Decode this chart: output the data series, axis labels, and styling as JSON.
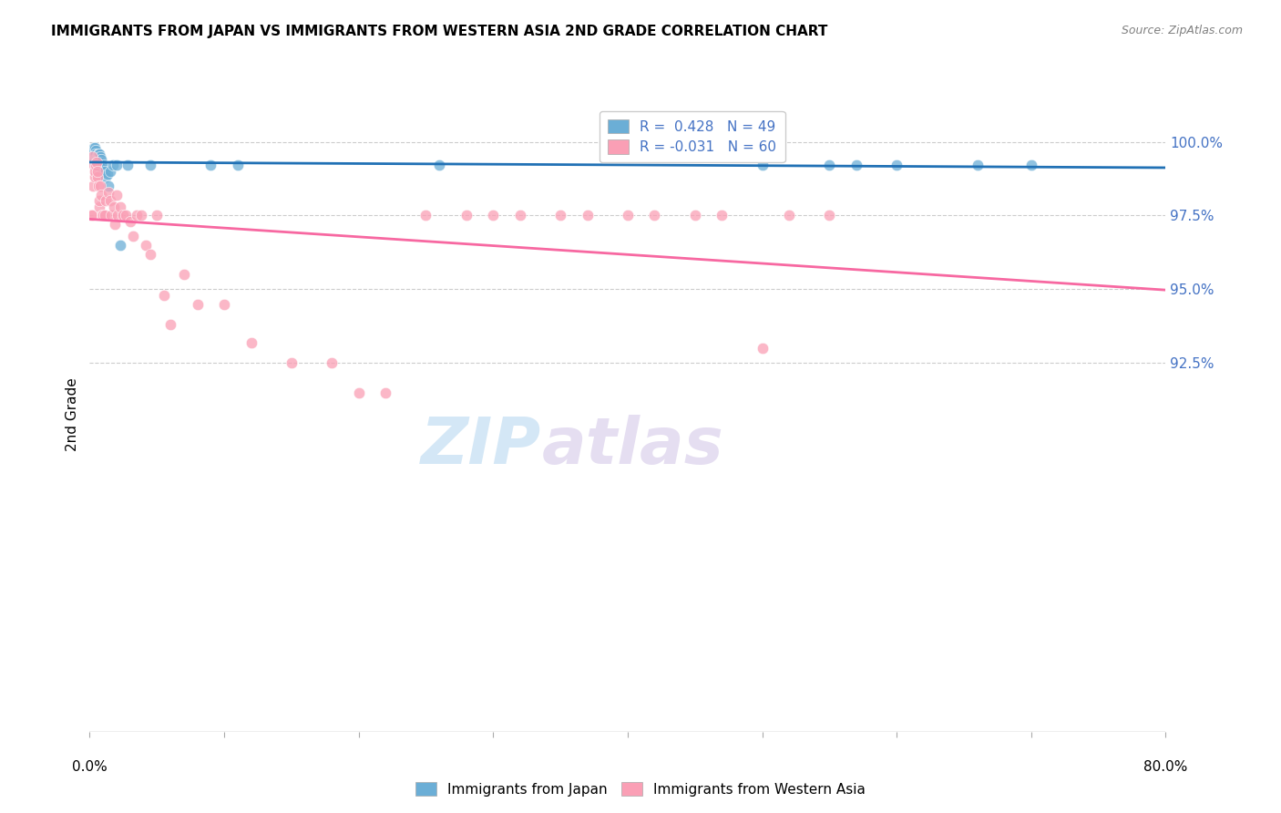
{
  "title": "IMMIGRANTS FROM JAPAN VS IMMIGRANTS FROM WESTERN ASIA 2ND GRADE CORRELATION CHART",
  "source": "Source: ZipAtlas.com",
  "ylabel": "2nd Grade",
  "x_min": 0.0,
  "x_max": 80.0,
  "y_min": 80.0,
  "y_max": 101.5,
  "y_ticks": [
    92.5,
    95.0,
    97.5,
    100.0
  ],
  "y_tick_labels": [
    "92.5%",
    "95.0%",
    "97.5%",
    "100.0%"
  ],
  "R_japan": 0.428,
  "N_japan": 49,
  "R_western_asia": -0.031,
  "N_western_asia": 60,
  "blue_color": "#6baed6",
  "pink_color": "#fa9fb5",
  "blue_line_color": "#2171b5",
  "pink_line_color": "#f768a1",
  "legend_label_japan": "Immigrants from Japan",
  "legend_label_western_asia": "Immigrants from Western Asia",
  "watermark_zip": "ZIP",
  "watermark_atlas": "atlas",
  "japan_x": [
    0.15,
    0.2,
    0.25,
    0.28,
    0.3,
    0.32,
    0.35,
    0.37,
    0.4,
    0.42,
    0.45,
    0.47,
    0.5,
    0.52,
    0.55,
    0.57,
    0.6,
    0.62,
    0.65,
    0.67,
    0.7,
    0.72,
    0.75,
    0.77,
    0.8,
    0.82,
    0.85,
    0.9,
    0.95,
    1.0,
    1.1,
    1.2,
    1.3,
    1.5,
    1.7,
    2.0,
    2.3,
    2.8,
    4.5,
    9.0,
    11.0,
    26.0,
    50.0,
    55.0,
    57.0,
    60.0,
    66.0,
    70.0,
    1.4
  ],
  "japan_y": [
    99.6,
    99.7,
    99.5,
    99.8,
    99.6,
    99.7,
    99.5,
    99.8,
    99.6,
    99.7,
    99.5,
    99.6,
    99.4,
    99.5,
    99.3,
    99.5,
    99.5,
    99.6,
    99.5,
    99.6,
    99.5,
    99.6,
    99.4,
    99.5,
    99.3,
    99.4,
    99.2,
    99.1,
    99.1,
    99.2,
    99.0,
    98.8,
    98.9,
    99.0,
    99.2,
    99.2,
    96.5,
    99.2,
    99.2,
    99.2,
    99.2,
    99.2,
    99.2,
    99.2,
    99.2,
    99.2,
    99.2,
    99.2,
    98.5
  ],
  "western_asia_x": [
    0.1,
    0.15,
    0.2,
    0.25,
    0.3,
    0.35,
    0.4,
    0.45,
    0.5,
    0.55,
    0.6,
    0.65,
    0.7,
    0.75,
    0.8,
    0.85,
    0.9,
    1.0,
    1.1,
    1.2,
    1.4,
    1.5,
    1.6,
    1.8,
    1.9,
    2.0,
    2.1,
    2.3,
    2.5,
    2.7,
    3.0,
    3.2,
    3.5,
    3.8,
    4.2,
    4.5,
    5.0,
    5.5,
    6.0,
    7.0,
    8.0,
    10.0,
    12.0,
    15.0,
    18.0,
    20.0,
    22.0,
    25.0,
    28.0,
    30.0,
    32.0,
    35.0,
    37.0,
    40.0,
    42.0,
    45.0,
    47.0,
    50.0,
    52.0,
    55.0
  ],
  "western_asia_y": [
    97.5,
    97.5,
    99.5,
    98.5,
    99.2,
    98.8,
    99.0,
    99.2,
    99.3,
    98.8,
    99.0,
    98.5,
    97.8,
    98.0,
    98.5,
    98.2,
    97.5,
    97.5,
    97.5,
    98.0,
    98.3,
    98.0,
    97.5,
    97.8,
    97.2,
    98.2,
    97.5,
    97.8,
    97.5,
    97.5,
    97.3,
    96.8,
    97.5,
    97.5,
    96.5,
    96.2,
    97.5,
    94.8,
    93.8,
    95.5,
    94.5,
    94.5,
    93.2,
    92.5,
    92.5,
    91.5,
    91.5,
    97.5,
    97.5,
    97.5,
    97.5,
    97.5,
    97.5,
    97.5,
    97.5,
    97.5,
    97.5,
    93.0,
    97.5,
    97.5
  ],
  "legend_text_color": "#4472c4",
  "grid_color": "#cccccc",
  "axis_label_color": "#4472c4"
}
